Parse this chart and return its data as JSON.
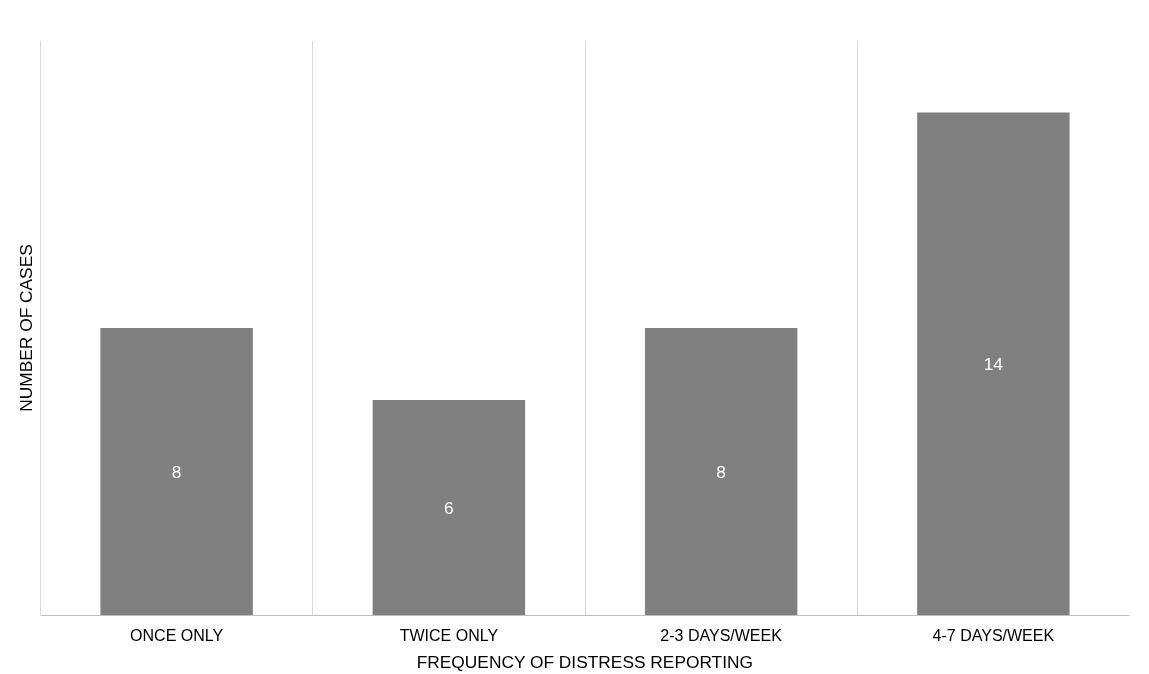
{
  "chart_data": {
    "type": "bar",
    "xlabel": "FREQUENCY OF DISTRESS REPORTING",
    "ylabel": "NUMBER OF CASES",
    "categories": [
      "ONCE ONLY",
      "TWICE ONLY",
      "2-3 DAYS/WEEK",
      "4-7 DAYS/WEEK"
    ],
    "values": [
      8,
      6,
      8,
      14
    ],
    "color": "#808080",
    "data_labels": true,
    "grid": "x"
  }
}
